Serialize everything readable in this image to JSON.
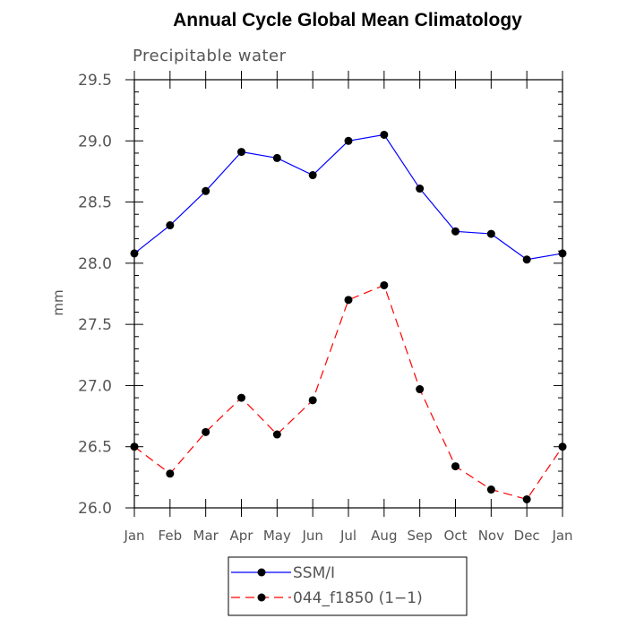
{
  "chart_data": {
    "type": "line",
    "title": "Annual Cycle Global Mean Climatology",
    "subtitle": "Precipitable water",
    "xlabel": "",
    "ylabel": "mm",
    "categories": [
      "Jan",
      "Feb",
      "Mar",
      "Apr",
      "May",
      "Jun",
      "Jul",
      "Aug",
      "Sep",
      "Oct",
      "Nov",
      "Dec",
      "Jan"
    ],
    "ylim": [
      26.0,
      29.5
    ],
    "yticks": [
      26.0,
      26.5,
      27.0,
      27.5,
      28.0,
      28.5,
      29.0,
      29.5
    ],
    "ytick_labels": [
      "26.0",
      "26.5",
      "27.0",
      "27.5",
      "28.0",
      "28.5",
      "29.0",
      "29.5"
    ],
    "grid": false,
    "legend_position": "bottom-center",
    "series": [
      {
        "name": "SSM/I",
        "color": "#0000ff",
        "dash": "solid",
        "marker": "filled-circle",
        "values": [
          28.08,
          28.31,
          28.59,
          28.91,
          28.86,
          28.72,
          29.0,
          29.05,
          28.61,
          28.26,
          28.24,
          28.03,
          28.08
        ]
      },
      {
        "name": "044_f1850 (1−1)",
        "color": "#ff0000",
        "dash": "dashed",
        "marker": "filled-circle",
        "values": [
          26.5,
          26.28,
          26.62,
          26.9,
          26.6,
          26.88,
          27.7,
          27.82,
          26.97,
          26.34,
          26.15,
          26.07,
          26.5
        ]
      }
    ]
  }
}
